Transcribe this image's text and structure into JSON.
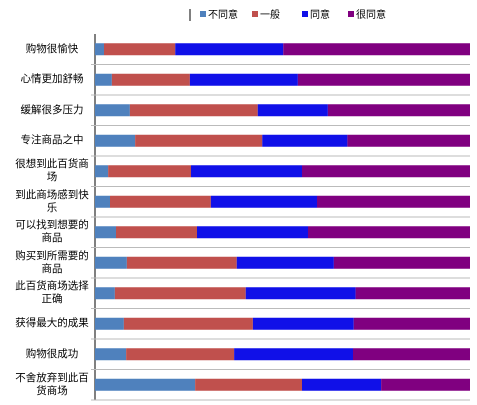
{
  "chart_data": {
    "type": "stacked-bar-horizontal",
    "categories": [
      "购物很愉快",
      "心情更加舒畅",
      "缓解很多压力",
      "专注商品之中",
      "很想到此百货商场",
      "到此商场感到快乐",
      "可以找到想要的商品",
      "购买到所需要的商品",
      "此百货商场选择正确",
      "获得最大的成果",
      "购物很成功",
      "不舍放弃到此百货商场"
    ],
    "series": [
      {
        "name": "不同意",
        "color": "#4f81bd",
        "values": [
          2.4,
          4.5,
          9.3,
          10.7,
          3.5,
          4,
          5.6,
          8.5,
          5.3,
          7.7,
          8.3,
          26.7
        ]
      },
      {
        "name": "一般",
        "color": "#c0504d",
        "values": [
          19,
          20.8,
          34.1,
          33.9,
          22.1,
          26.9,
          21.6,
          29.3,
          34.9,
          34.4,
          28.8,
          28.5
        ]
      },
      {
        "name": "同意",
        "color": "#1010e8",
        "values": [
          28.8,
          28.8,
          18.7,
          22.7,
          29.6,
          28.3,
          29.6,
          25.9,
          29.3,
          26.9,
          31.7,
          21.1
        ]
      },
      {
        "name": "很同意",
        "color": "#800080",
        "values": [
          49.8,
          45.9,
          37.9,
          32.7,
          44.8,
          40.8,
          43.2,
          36.3,
          30.5,
          31,
          31.2,
          23.7
        ]
      }
    ],
    "xlim": [
      0,
      100
    ]
  }
}
